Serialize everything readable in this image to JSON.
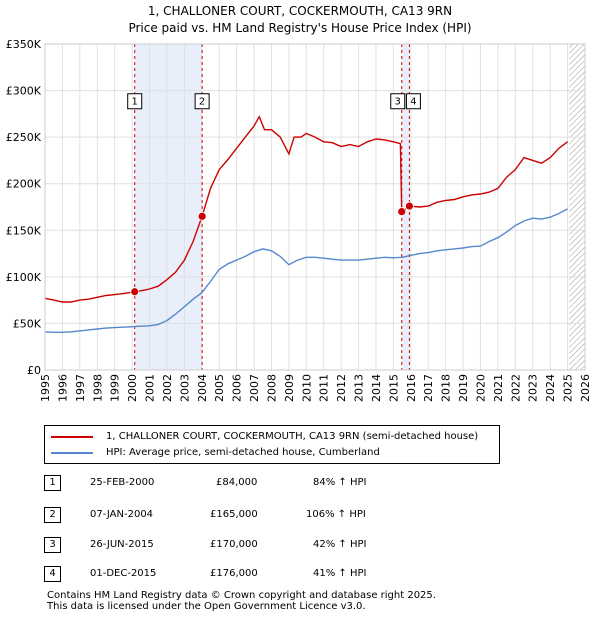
{
  "title_line1": "1, CHALLONER COURT, COCKERMOUTH, CA13 9RN",
  "title_line2": "Price paid vs. HM Land Registry's House Price Index (HPI)",
  "colors": {
    "property": "#cc0000",
    "hpi": "#5588cc",
    "shade": "#e8eefa",
    "grid": "#e0e0e0"
  },
  "legend": {
    "property_label": "1, CHALLONER COURT, COCKERMOUTH, CA13 9RN (semi-detached house)",
    "hpi_label": "HPI: Average price, semi-detached house, Cumberland"
  },
  "transactions": [
    {
      "num": "1",
      "date": "25-FEB-2000",
      "price": "£84,000",
      "hpi": "84% ↑ HPI"
    },
    {
      "num": "2",
      "date": "07-JAN-2004",
      "price": "£165,000",
      "hpi": "106% ↑ HPI"
    },
    {
      "num": "3",
      "date": "26-JUN-2015",
      "price": "£170,000",
      "hpi": "42% ↑ HPI"
    },
    {
      "num": "4",
      "date": "01-DEC-2015",
      "price": "£176,000",
      "hpi": "41% ↑ HPI"
    }
  ],
  "footer_line1": "Contains HM Land Registry data © Crown copyright and database right 2025.",
  "footer_line2": "This data is licensed under the Open Government Licence v3.0.",
  "chart_data": {
    "type": "line",
    "title": "1, CHALLONER COURT, COCKERMOUTH, CA13 9RN — Price paid vs. HM Land Registry's House Price Index (HPI)",
    "xlim": [
      1995,
      2026
    ],
    "ylim": [
      0,
      350000
    ],
    "y_ticks": [
      0,
      50000,
      100000,
      150000,
      200000,
      250000,
      300000,
      350000
    ],
    "y_tick_labels": [
      "£0",
      "£50K",
      "£100K",
      "£150K",
      "£200K",
      "£250K",
      "£300K",
      "£350K"
    ],
    "x_ticks": [
      1995,
      1996,
      1997,
      1998,
      1999,
      2000,
      2001,
      2002,
      2003,
      2004,
      2005,
      2006,
      2007,
      2008,
      2009,
      2010,
      2011,
      2012,
      2013,
      2014,
      2015,
      2016,
      2017,
      2018,
      2019,
      2020,
      2021,
      2022,
      2023,
      2024,
      2025,
      2026
    ],
    "shaded_ranges": [
      [
        2000.15,
        2004.02
      ],
      [
        2015.48,
        2015.92
      ]
    ],
    "hatched_from": 2025.1,
    "sales": [
      {
        "label": "1",
        "x": 2000.15,
        "y": 84000
      },
      {
        "label": "2",
        "x": 2004.02,
        "y": 165000
      },
      {
        "label": "3",
        "x": 2015.48,
        "y": 170000
      },
      {
        "label": "4",
        "x": 2015.92,
        "y": 176000
      }
    ],
    "marker_label_y": 288000,
    "series": [
      {
        "name": "1, CHALLONER COURT, COCKERMOUTH, CA13 9RN (semi-detached house)",
        "x": [
          1995.0,
          1995.5,
          1996.0,
          1996.5,
          1997.0,
          1997.5,
          1998.0,
          1998.5,
          1999.0,
          1999.5,
          2000.15,
          2000.5,
          2001.0,
          2001.5,
          2002.0,
          2002.5,
          2003.0,
          2003.5,
          2004.02,
          2004.5,
          2005.0,
          2005.5,
          2006.0,
          2006.5,
          2007.0,
          2007.3,
          2007.6,
          2008.0,
          2008.5,
          2009.0,
          2009.3,
          2009.7,
          2010.0,
          2010.5,
          2011.0,
          2011.5,
          2012.0,
          2012.5,
          2013.0,
          2013.5,
          2014.0,
          2014.5,
          2015.0,
          2015.4,
          2015.48,
          2015.7,
          2015.92,
          2016.5,
          2017.0,
          2017.5,
          2018.0,
          2018.5,
          2019.0,
          2019.5,
          2020.0,
          2020.5,
          2021.0,
          2021.5,
          2022.0,
          2022.5,
          2023.0,
          2023.5,
          2024.0,
          2024.5,
          2025.0
        ],
        "y": [
          77000,
          75000,
          73000,
          73000,
          75000,
          76000,
          78000,
          80000,
          81000,
          82000,
          84000,
          85000,
          87000,
          90000,
          97000,
          105000,
          118000,
          138000,
          165000,
          195000,
          215000,
          226000,
          238000,
          250000,
          262000,
          272000,
          258000,
          258000,
          250000,
          232000,
          250000,
          250000,
          254000,
          250000,
          245000,
          244000,
          240000,
          242000,
          240000,
          245000,
          248000,
          247000,
          245000,
          243000,
          170000,
          173000,
          176000,
          175000,
          176000,
          180000,
          182000,
          183000,
          186000,
          188000,
          189000,
          191000,
          195000,
          207000,
          215000,
          228000,
          225000,
          222000,
          228000,
          238000,
          245000
        ]
      },
      {
        "name": "HPI: Average price, semi-detached house, Cumberland",
        "x": [
          1995.0,
          1995.5,
          1996.0,
          1996.5,
          1997.0,
          1997.5,
          1998.0,
          1998.5,
          1999.0,
          1999.5,
          2000.0,
          2000.5,
          2001.0,
          2001.5,
          2002.0,
          2002.5,
          2003.0,
          2003.5,
          2004.0,
          2004.5,
          2005.0,
          2005.5,
          2006.0,
          2006.5,
          2007.0,
          2007.5,
          2008.0,
          2008.5,
          2009.0,
          2009.5,
          2010.0,
          2010.5,
          2011.0,
          2011.5,
          2012.0,
          2012.5,
          2013.0,
          2013.5,
          2014.0,
          2014.5,
          2015.0,
          2015.5,
          2016.0,
          2016.5,
          2017.0,
          2017.5,
          2018.0,
          2018.5,
          2019.0,
          2019.5,
          2020.0,
          2020.5,
          2021.0,
          2021.5,
          2022.0,
          2022.5,
          2023.0,
          2023.5,
          2024.0,
          2024.5,
          2025.0
        ],
        "y": [
          41000,
          40500,
          40500,
          41000,
          42000,
          43000,
          44000,
          45000,
          45500,
          46000,
          46500,
          47000,
          47500,
          49000,
          53000,
          60000,
          68000,
          76000,
          83000,
          95000,
          108000,
          114000,
          118000,
          122000,
          127000,
          130000,
          128000,
          122000,
          113000,
          118000,
          121000,
          121000,
          120000,
          119000,
          118000,
          118000,
          118000,
          119000,
          120000,
          121000,
          120500,
          121000,
          123000,
          125000,
          126000,
          128000,
          129000,
          130000,
          131000,
          132500,
          133000,
          138000,
          142000,
          148000,
          155000,
          160000,
          163000,
          162000,
          164000,
          168000,
          173000
        ]
      }
    ]
  }
}
